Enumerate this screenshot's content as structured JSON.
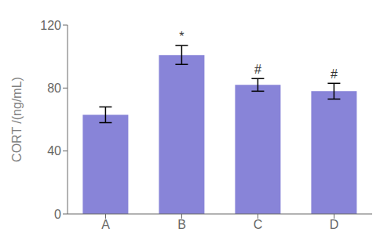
{
  "chart_data": {
    "type": "bar",
    "categories": [
      "A",
      "B",
      "C",
      "D"
    ],
    "values": [
      63,
      101,
      82,
      78
    ],
    "errors": [
      5,
      6,
      4,
      5
    ],
    "color": "#8884d8",
    "ylabel": "CORT /(ng/mL)",
    "ylim": [
      0,
      120
    ],
    "yticks": [
      0,
      40,
      80,
      120
    ],
    "annotations": [
      {
        "text": "*",
        "category": "B"
      },
      {
        "text": "#",
        "category": "C"
      },
      {
        "text": "#",
        "category": "D"
      }
    ],
    "grid": false
  }
}
